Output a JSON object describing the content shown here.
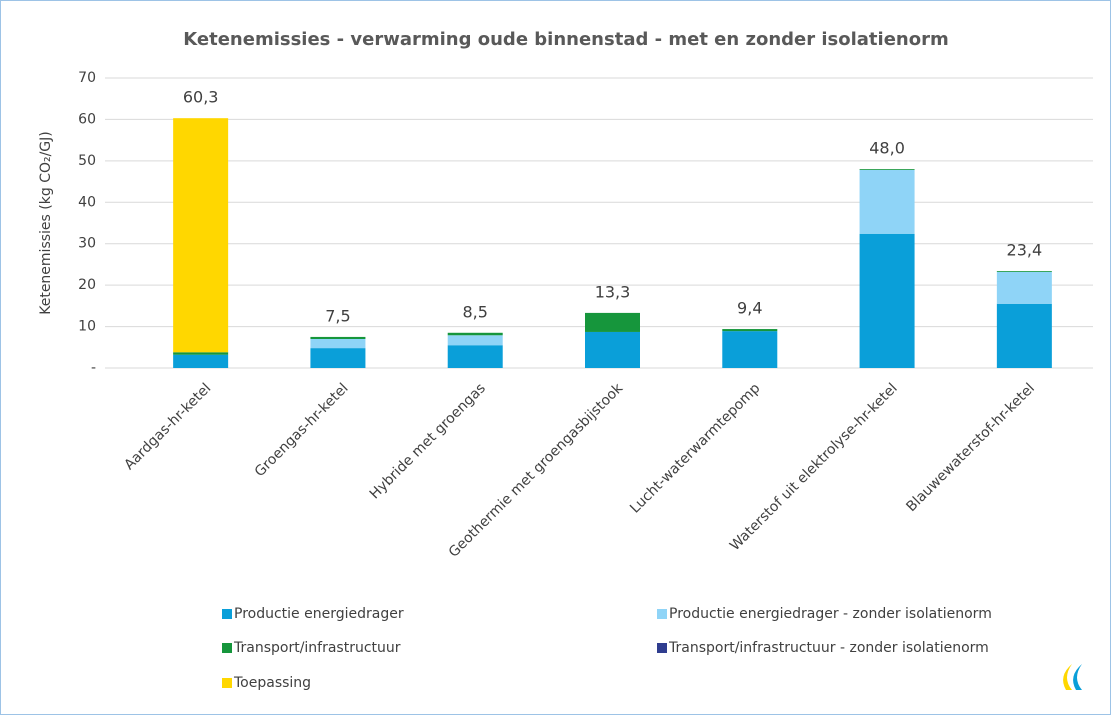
{
  "chart_data": {
    "type": "stacked_bar",
    "title": "Ketenemissies - verwarming oude binnenstad - met en zonder isolatienorm",
    "y_label": "Ketenemissies (kg CO₂/GJ)",
    "categories": [
      "Aardgas-hr-ketel",
      "Groengas-hr-ketel",
      "Hybride met groengas",
      "Geothermie met groengasbijstook",
      "Lucht-waterwarmtepomp",
      "Waterstof uit elektrolyse-hr-ketel",
      "Blauwewaterstof-hr-ketel"
    ],
    "series": [
      {
        "name": "Productie energiedrager",
        "color": "#0a9fd9",
        "values": [
          3.2,
          4.8,
          5.5,
          8.7,
          8.9,
          32.4,
          15.5
        ]
      },
      {
        "name": "Productie energiedrager - zonder isolatienorm",
        "color": "#8fd4f7",
        "values": [
          0,
          2.2,
          2.4,
          0,
          0,
          15.4,
          7.7
        ]
      },
      {
        "name": "Transport/infrastructuur",
        "color": "#16963c",
        "values": [
          0.6,
          0.5,
          0.6,
          4.6,
          0.5,
          0.2,
          0.2
        ]
      },
      {
        "name": "Transport/infrastructuur - zonder isolatienorm",
        "color": "#2f3d8f",
        "values": [
          0,
          0,
          0,
          0,
          0,
          0,
          0
        ]
      },
      {
        "name": "Toepassing",
        "color": "#ffd700",
        "values": [
          56.5,
          0,
          0,
          0,
          0,
          0,
          0
        ]
      }
    ],
    "totals": [
      60.3,
      7.5,
      8.5,
      13.3,
      9.4,
      48.0,
      23.4
    ],
    "value_labels": [
      "60,3",
      "7,5",
      "8,5",
      "13,3",
      "9,4",
      "48,0",
      "23,4"
    ],
    "ylim": [
      0,
      70
    ],
    "yticks": [
      {
        "value": 0,
        "label": "-"
      },
      10,
      20,
      30,
      40,
      50,
      60,
      70
    ],
    "grid": true
  }
}
